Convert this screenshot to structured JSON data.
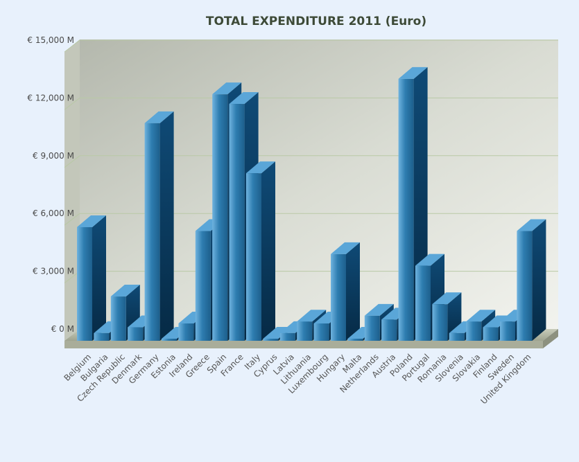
{
  "chart_data": {
    "type": "bar",
    "title": "TOTAL EXPENDITURE 2011 (Euro)",
    "xlabel": "",
    "ylabel": "",
    "ylim": [
      0,
      15000
    ],
    "grid": true,
    "y_ticks": [
      {
        "value": 0,
        "label": "€ 0 M"
      },
      {
        "value": 3000,
        "label": "€ 3,000 M"
      },
      {
        "value": 6000,
        "label": "€ 6,000 M"
      },
      {
        "value": 9000,
        "label": "€ 9,000 M"
      },
      {
        "value": 12000,
        "label": "€ 12,000 M"
      },
      {
        "value": 15000,
        "label": "€ 15,000 M"
      }
    ],
    "categories": [
      "Belgium",
      "Bulgaria",
      "Czech Republic",
      "Denmark",
      "Germany",
      "Estonia",
      "Ireland",
      "Greece",
      "Spain",
      "France",
      "Italy",
      "Cyprus",
      "Latvia",
      "Lithuania",
      "Luxembourg",
      "Hungary",
      "Malta",
      "Netherlands",
      "Austria",
      "Poland",
      "Portugal",
      "Romania",
      "Slovenia",
      "Slovakia",
      "Finland",
      "Sweden",
      "United Kingdom"
    ],
    "values": [
      5900,
      400,
      2300,
      700,
      11300,
      100,
      900,
      5700,
      12800,
      12300,
      8700,
      50,
      400,
      1000,
      900,
      4500,
      50,
      1300,
      1100,
      13600,
      3900,
      1900,
      400,
      1000,
      700,
      1000,
      5700
    ],
    "colors": {
      "bar_front": "#2f7eb0",
      "bar_side": "#0c3f66",
      "bar_top": "#5aa6d8",
      "grid": "#b9c9a6"
    }
  }
}
